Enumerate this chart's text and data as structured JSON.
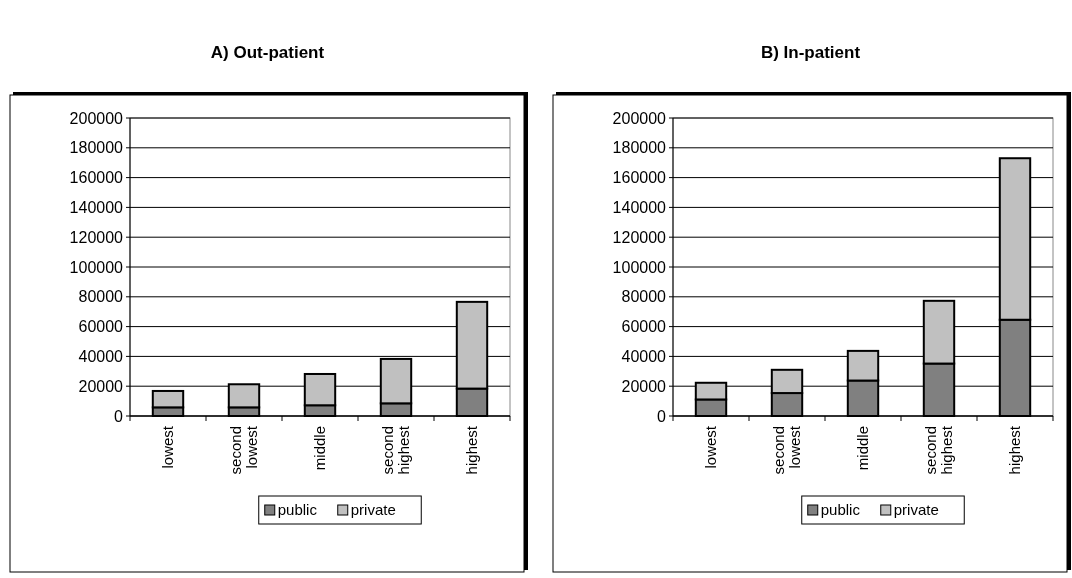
{
  "chart_data": [
    {
      "type": "bar",
      "title": "A) Out-patient",
      "categories": [
        "lowest",
        "second lowest",
        "middle",
        "second highest",
        "highest"
      ],
      "stacked": true,
      "series": [
        {
          "name": "public",
          "color": "#808080",
          "values": [
            5800,
            5800,
            7200,
            8500,
            18400
          ]
        },
        {
          "name": "private",
          "color": "#c0c0c0",
          "values": [
            11000,
            15500,
            21000,
            29800,
            58200
          ]
        }
      ],
      "ylim": [
        0,
        200000
      ],
      "yticks": [
        0,
        20000,
        40000,
        60000,
        80000,
        100000,
        120000,
        140000,
        160000,
        180000,
        200000
      ],
      "grid": "y",
      "legend": "bottom"
    },
    {
      "type": "bar",
      "title": "B) In-patient",
      "categories": [
        "lowest",
        "second lowest",
        "middle",
        "second highest",
        "highest"
      ],
      "stacked": true,
      "series": [
        {
          "name": "public",
          "color": "#808080",
          "values": [
            11100,
            15400,
            23800,
            35200,
            64600
          ]
        },
        {
          "name": "private",
          "color": "#c0c0c0",
          "values": [
            11200,
            15600,
            19900,
            42100,
            108400
          ]
        }
      ],
      "ylim": [
        0,
        200000
      ],
      "yticks": [
        0,
        20000,
        40000,
        60000,
        80000,
        100000,
        120000,
        140000,
        160000,
        180000,
        200000
      ],
      "grid": "y",
      "legend": "bottom"
    }
  ]
}
